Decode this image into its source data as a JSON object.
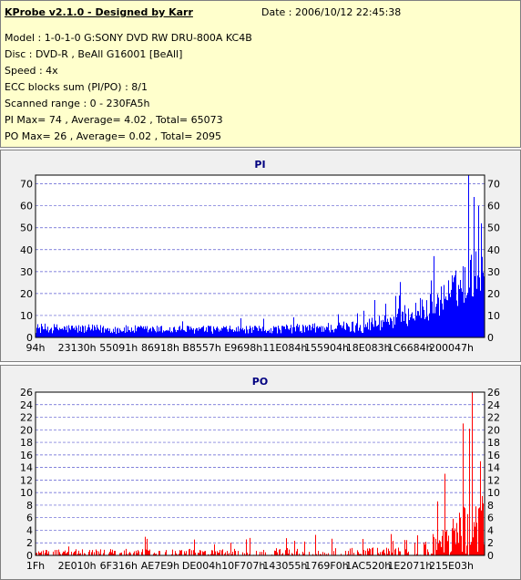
{
  "app": {
    "title": "KProbe v2.1.0 - Designed by Karr",
    "date": "Date : 2006/10/12 22:45:38"
  },
  "info_lines": [
    "Model : 1-0-1-0 G:SONY     DVD RW DRU-800A  KC4B",
    "Disc : DVD-R , BeAll G16001 [BeAll]",
    "Speed : 4x",
    "ECC blocks sum (PI/PO) : 8/1",
    "Scanned range : 0 - 230FA5h",
    "PI Max= 74 , Average= 4.02 , Total= 65073",
    "PO Max= 26 , Average= 0.02 , Total= 2095"
  ],
  "colors": {
    "pi": "#0000ff",
    "po": "#ff0000",
    "info_bg": "#ffffcc",
    "panel_bg": "#f0f0f0"
  },
  "chart_data": [
    {
      "type": "bar",
      "title": "PI",
      "ylim": [
        0,
        74
      ],
      "yticks": [
        0,
        10,
        20,
        30,
        40,
        50,
        60,
        70
      ],
      "xticks": [
        "94h",
        "23130h",
        "55091h",
        "86918h",
        "B8557h",
        "E9698h",
        "11E084h",
        "155904h",
        "18E083h",
        "1C6684h",
        "200047h"
      ],
      "x_range": "0 - 230FA5h",
      "series": [
        {
          "color": "#0000ff",
          "profile": [
            {
              "pos": 0.0,
              "base": 3.5,
              "spread": 4.5
            },
            {
              "pos": 0.2,
              "base": 3.0,
              "spread": 4.0
            },
            {
              "pos": 0.5,
              "base": 3.0,
              "spread": 3.5
            },
            {
              "pos": 0.72,
              "base": 4.0,
              "spread": 6.0
            },
            {
              "pos": 0.8,
              "base": 7.0,
              "spread": 9.0
            },
            {
              "pos": 0.88,
              "base": 12.0,
              "spread": 13.0
            },
            {
              "pos": 0.94,
              "base": 20.0,
              "spread": 18.0
            },
            {
              "pos": 1.0,
              "base": 30.0,
              "spread": 24.0
            }
          ],
          "peaks": [
            {
              "pos": 0.963,
              "value": 74
            },
            {
              "pos": 0.975,
              "value": 64
            },
            {
              "pos": 0.985,
              "value": 60
            },
            {
              "pos": 0.992,
              "value": 52
            }
          ]
        }
      ]
    },
    {
      "type": "bar",
      "title": "PO",
      "ylim": [
        0,
        26
      ],
      "yticks": [
        0,
        2,
        4,
        6,
        8,
        10,
        12,
        14,
        16,
        18,
        20,
        22,
        24,
        26
      ],
      "xticks": [
        "1Fh",
        "2E010h",
        "6F316h",
        "AE7E9h",
        "DE004h",
        "10F707h",
        "143055h",
        "1769F0h",
        "1AC520h",
        "1E2071h",
        "215E03h"
      ],
      "x_range": "0 - 230FA5h",
      "series": [
        {
          "color": "#ff0000",
          "profile": [
            {
              "pos": 0.0,
              "base": 0.0,
              "spread": 1.5
            },
            {
              "pos": 0.85,
              "base": 0.0,
              "spread": 2.0
            },
            {
              "pos": 0.9,
              "base": 1.0,
              "spread": 6.0
            },
            {
              "pos": 1.0,
              "base": 3.0,
              "spread": 12.0
            }
          ],
          "peaks": [
            {
              "pos": 0.952,
              "value": 21
            },
            {
              "pos": 0.972,
              "value": 26
            },
            {
              "pos": 0.99,
              "value": 15
            },
            {
              "pos": 0.91,
              "value": 13
            }
          ]
        }
      ]
    }
  ]
}
